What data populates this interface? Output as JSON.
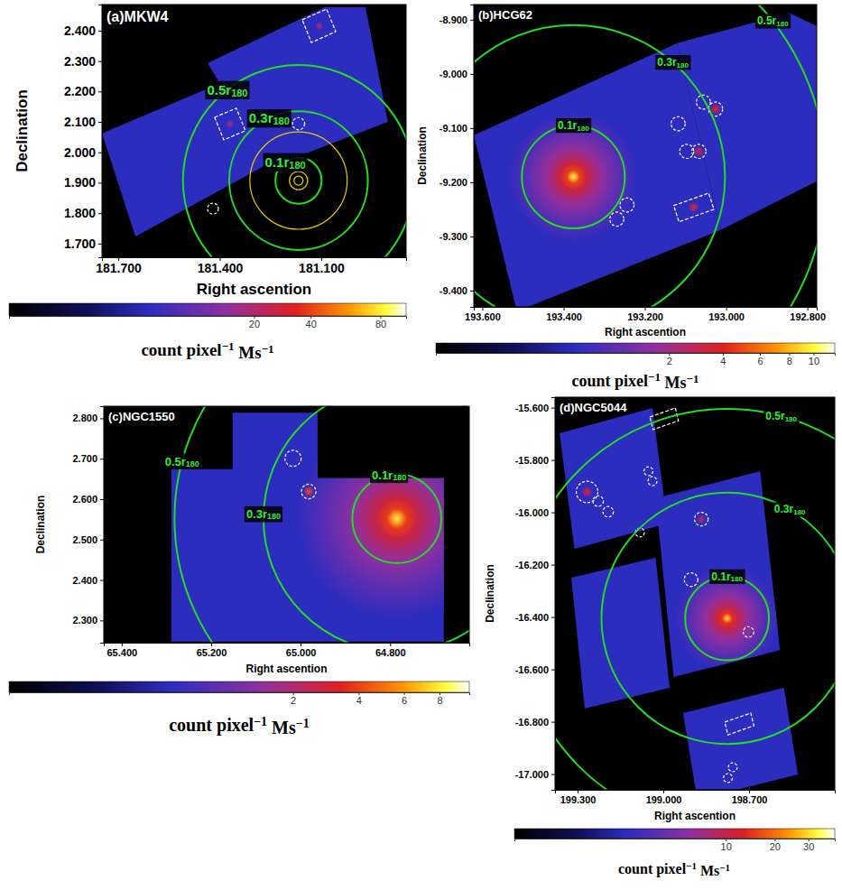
{
  "chart_data": [
    {
      "type": "image",
      "title": "(a)MKW4",
      "x_label": "Right ascention",
      "y_label": "Declination",
      "xlim": [
        181.748,
        180.849
      ],
      "ylim": [
        1.655,
        2.486
      ],
      "xticks": [
        {
          "value": 181.7,
          "label": "181.700"
        },
        {
          "value": 181.4,
          "label": "181.400"
        },
        {
          "value": 181.1,
          "label": "181.100"
        }
      ],
      "yticks": [
        {
          "value": 2.4,
          "label": "2.400"
        },
        {
          "value": 2.3,
          "label": "2.300"
        },
        {
          "value": 2.2,
          "label": "2.200"
        },
        {
          "value": 2.1,
          "label": "2.100"
        },
        {
          "value": 2.0,
          "label": "2.000"
        },
        {
          "value": 1.9,
          "label": "1.900"
        },
        {
          "value": 1.8,
          "label": "1.800"
        },
        {
          "value": 1.7,
          "label": "1.700"
        }
      ],
      "background": 3.0,
      "footprints": [
        [
          [
            181.748,
            2.062
          ],
          [
            181.351,
            2.249
          ],
          [
            181.249,
            1.967
          ],
          [
            181.649,
            1.723
          ]
        ],
        [
          [
            181.436,
            2.293
          ],
          [
            181.089,
            2.477
          ],
          [
            180.969,
            2.477
          ],
          [
            180.903,
            2.1
          ],
          [
            181.249,
            1.952
          ]
        ]
      ],
      "sources": [
        {
          "center": [
            181.37,
            2.093
          ],
          "radius": 0.015,
          "value": 20
        },
        {
          "center": [
            181.106,
            2.416
          ],
          "radius": 0.015,
          "value": 20
        }
      ],
      "contours": {
        "center": [
          181.167,
          1.907
        ],
        "radii": [
          0.015,
          0.03,
          0.16
        ]
      },
      "r180_center": [
        181.167,
        1.907
      ],
      "r180_circles": [
        {
          "label": "0.1r",
          "subscript": "180",
          "radius": 0.076
        },
        {
          "label": "0.3r",
          "subscript": "180",
          "radius": 0.228
        },
        {
          "label": "0.5r",
          "subscript": "180",
          "radius": 0.38
        }
      ],
      "excluded_circles": [
        {
          "center": [
            181.167,
            2.094
          ],
          "radius": 0.02
        },
        {
          "center": [
            181.42,
            1.815
          ],
          "radius": 0.018
        }
      ],
      "excluded_boxes": [
        [
          [
            181.415,
            2.115
          ],
          [
            181.351,
            2.145
          ],
          [
            181.324,
            2.071
          ],
          [
            181.388,
            2.041
          ]
        ],
        [
          [
            181.156,
            2.436
          ],
          [
            181.084,
            2.471
          ],
          [
            181.057,
            2.397
          ],
          [
            181.129,
            2.361
          ]
        ]
      ],
      "colorbar": {
        "range": [
          0,
          100
        ],
        "ticks": [
          20,
          40,
          80
        ],
        "label": [
          {
            "text": "count pixel",
            "sup": "−1"
          },
          {
            "text": " Ms",
            "sup": "−1"
          }
        ]
      }
    },
    {
      "type": "image",
      "title": "(b)HCG62",
      "x_label": "Right ascention",
      "y_label": "Declination",
      "xlim": [
        193.621,
        192.777
      ],
      "ylim": [
        -9.43,
        -8.872
      ],
      "xticks": [
        {
          "value": 193.6,
          "label": "193.600"
        },
        {
          "value": 193.4,
          "label": "193.400"
        },
        {
          "value": 193.2,
          "label": "193.200"
        },
        {
          "value": 193.0,
          "label": "193.000"
        },
        {
          "value": 192.8,
          "label": "192.800"
        }
      ],
      "yticks": [
        {
          "value": -8.9,
          "label": "-8.900"
        },
        {
          "value": -9.0,
          "label": "-9.000"
        },
        {
          "value": -9.1,
          "label": "-9.100"
        },
        {
          "value": -9.2,
          "label": "-9.200"
        },
        {
          "value": -9.3,
          "label": "-9.300"
        },
        {
          "value": -9.4,
          "label": "-9.400"
        }
      ],
      "background": 0.36,
      "footprints": [
        [
          [
            193.621,
            -9.113
          ],
          [
            193.12,
            -8.943
          ],
          [
            193.013,
            -9.288
          ],
          [
            193.515,
            -9.438
          ]
        ],
        [
          [
            193.12,
            -8.943
          ],
          [
            192.843,
            -8.888
          ],
          [
            192.774,
            -8.913
          ],
          [
            192.774,
            -9.197
          ],
          [
            193.013,
            -9.288
          ]
        ]
      ],
      "emission": {
        "center": [
          193.376,
          -9.19
        ],
        "radius": 0.12,
        "peak": 10
      },
      "sources": [
        {
          "center": [
            193.026,
            -9.065
          ],
          "radius": 0.012,
          "value": 4
        },
        {
          "center": [
            193.067,
            -9.143
          ],
          "radius": 0.012,
          "value": 3
        },
        {
          "center": [
            193.08,
            -9.246
          ],
          "radius": 0.012,
          "value": 3
        }
      ],
      "r180_center": [
        193.376,
        -9.19
      ],
      "r180_circles": [
        {
          "label": "0.1r",
          "subscript": "180",
          "radius": 0.095
        },
        {
          "label": "0.3r",
          "subscript": "180",
          "radius": 0.28
        },
        {
          "label": "0.5r",
          "subscript": "180",
          "radius": 0.467
        }
      ],
      "excluded_circles": [
        {
          "center": [
            193.056,
            -9.052
          ],
          "radius": 0.013
        },
        {
          "center": [
            193.026,
            -9.065
          ],
          "radius": 0.013
        },
        {
          "center": [
            193.118,
            -9.092
          ],
          "radius": 0.013
        },
        {
          "center": [
            193.097,
            -9.143
          ],
          "radius": 0.013
        },
        {
          "center": [
            193.067,
            -9.143
          ],
          "radius": 0.013
        },
        {
          "center": [
            193.244,
            -9.242
          ],
          "radius": 0.013
        },
        {
          "center": [
            193.269,
            -9.268
          ],
          "radius": 0.013
        }
      ],
      "excluded_boxes": [
        [
          [
            193.129,
            -9.243
          ],
          [
            193.043,
            -9.22
          ],
          [
            193.03,
            -9.25
          ],
          [
            193.116,
            -9.273
          ]
        ]
      ],
      "colorbar": {
        "range": [
          0,
          12
        ],
        "ticks": [
          2,
          4,
          6,
          8,
          10
        ],
        "label": [
          {
            "text": "count pixel",
            "sup": "−1"
          },
          {
            "text": " Ms",
            "sup": "−1"
          }
        ]
      }
    },
    {
      "type": "image",
      "title": "(c)NGC1550",
      "x_label": "Right ascention",
      "y_label": "Declination",
      "xlim": [
        65.44,
        64.623
      ],
      "ylim": [
        2.245,
        2.83
      ],
      "xticks": [
        {
          "value": 65.4,
          "label": "65.400"
        },
        {
          "value": 65.2,
          "label": "65.200"
        },
        {
          "value": 65.0,
          "label": "65.000"
        },
        {
          "value": 64.8,
          "label": "64.800"
        }
      ],
      "yticks": [
        {
          "value": 2.8,
          "label": "2.800"
        },
        {
          "value": 2.7,
          "label": "2.700"
        },
        {
          "value": 2.6,
          "label": "2.600"
        },
        {
          "value": 2.5,
          "label": "2.500"
        },
        {
          "value": 2.4,
          "label": "2.400"
        },
        {
          "value": 2.3,
          "label": "2.300"
        }
      ],
      "background": 0.3,
      "footprints": [
        [
          [
            65.289,
            2.674
          ],
          [
            65.152,
            2.674
          ],
          [
            65.152,
            2.814
          ],
          [
            64.962,
            2.814
          ],
          [
            64.962,
            2.652
          ],
          [
            64.68,
            2.652
          ],
          [
            64.68,
            2.248
          ],
          [
            65.289,
            2.248
          ]
        ]
      ],
      "emission": {
        "center": [
          64.785,
          2.552
        ],
        "radius": 0.25,
        "peak": 8
      },
      "sources": [
        {
          "center": [
            64.982,
            2.619
          ],
          "radius": 0.015,
          "value": 4
        }
      ],
      "r180_center": [
        64.785,
        2.552
      ],
      "r180_circles": [
        {
          "label": "0.1r",
          "subscript": "180",
          "radius": 0.11
        },
        {
          "label": "0.3r",
          "subscript": "180",
          "radius": 0.33
        },
        {
          "label": "0.5r",
          "subscript": "180",
          "radius": 0.55
        }
      ],
      "excluded_circles": [
        {
          "center": [
            65.017,
            2.701
          ],
          "radius": 0.02
        },
        {
          "center": [
            64.982,
            2.619
          ],
          "radius": 0.018
        }
      ],
      "colorbar": {
        "range": [
          0,
          10
        ],
        "ticks": [
          2,
          4,
          6,
          8
        ],
        "label": [
          {
            "text": "count pixel",
            "sup": "−1"
          },
          {
            "text": " Ms",
            "sup": "−1"
          }
        ]
      }
    },
    {
      "type": "image",
      "title": "(d)NGC5044",
      "x_label": "Right ascention",
      "y_label": "Declination",
      "xlim": [
        199.379,
        198.4
      ],
      "ylim": [
        -17.06,
        -15.56
      ],
      "xticks": [
        {
          "value": 199.3,
          "label": "199.300"
        },
        {
          "value": 199.0,
          "label": "199.000"
        },
        {
          "value": 198.7,
          "label": "198.700"
        }
      ],
      "yticks": [
        {
          "value": -15.6,
          "label": "-15.600"
        },
        {
          "value": -15.8,
          "label": "-15.800"
        },
        {
          "value": -16.0,
          "label": "-16.000"
        },
        {
          "value": -16.2,
          "label": "-16.200"
        },
        {
          "value": -16.4,
          "label": "-16.400"
        },
        {
          "value": -16.6,
          "label": "-16.600"
        },
        {
          "value": -16.8,
          "label": "-16.800"
        },
        {
          "value": -17.0,
          "label": "-17.000"
        }
      ],
      "background": 1.2,
      "footprints": [
        [
          [
            199.363,
            -15.698
          ],
          [
            199.038,
            -15.601
          ],
          [
            198.986,
            -16.043
          ],
          [
            199.311,
            -16.139
          ]
        ],
        [
          [
            199.027,
            -15.946
          ],
          [
            198.661,
            -15.843
          ],
          [
            198.592,
            -16.526
          ],
          [
            198.964,
            -16.629
          ]
        ],
        [
          [
            199.322,
            -16.25
          ],
          [
            199.027,
            -16.174
          ],
          [
            198.978,
            -16.67
          ],
          [
            199.275,
            -16.75
          ]
        ],
        [
          [
            198.931,
            -16.767
          ],
          [
            198.578,
            -16.67
          ],
          [
            198.529,
            -17.001
          ],
          [
            198.881,
            -17.098
          ]
        ]
      ],
      "emission": {
        "center": [
          198.777,
          -16.405
        ],
        "radius": 0.2,
        "peak": 30
      },
      "sources": [
        {
          "center": [
            199.267,
            -15.922
          ],
          "radius": 0.025,
          "value": 12
        },
        {
          "center": [
            198.867,
            -16.026
          ],
          "radius": 0.02,
          "value": 10
        },
        {
          "center": [
            198.702,
            -16.457
          ],
          "radius": 0.015,
          "value": 6
        }
      ],
      "r180_center": [
        198.777,
        -16.405
      ],
      "r180_circles": [
        {
          "label": "0.1r",
          "subscript": "180",
          "radius": 0.16
        },
        {
          "label": "0.3r",
          "subscript": "180",
          "radius": 0.48
        },
        {
          "label": "0.5r",
          "subscript": "180",
          "radius": 0.8
        }
      ],
      "excluded_circles": [
        {
          "center": [
            199.267,
            -15.922
          ],
          "radius": 0.041
        },
        {
          "center": [
            199.228,
            -15.957
          ],
          "radius": 0.02
        },
        {
          "center": [
            199.193,
            -15.998
          ],
          "radius": 0.02
        },
        {
          "center": [
            199.052,
            -15.843
          ],
          "radius": 0.017
        },
        {
          "center": [
            199.038,
            -15.881
          ],
          "radius": 0.017
        },
        {
          "center": [
            199.082,
            -16.077
          ],
          "radius": 0.017
        },
        {
          "center": [
            198.867,
            -16.026
          ],
          "radius": 0.026
        },
        {
          "center": [
            198.903,
            -16.257
          ],
          "radius": 0.026
        },
        {
          "center": [
            198.702,
            -16.457
          ],
          "radius": 0.02
        },
        {
          "center": [
            198.757,
            -16.974
          ],
          "radius": 0.017
        },
        {
          "center": [
            198.774,
            -17.015
          ],
          "radius": 0.017
        }
      ],
      "excluded_boxes": [
        [
          [
            199.047,
            -15.636
          ],
          [
            198.958,
            -15.601
          ],
          [
            198.947,
            -15.65
          ],
          [
            199.036,
            -15.684
          ]
        ],
        [
          [
            198.785,
            -16.801
          ],
          [
            198.694,
            -16.767
          ],
          [
            198.683,
            -16.815
          ],
          [
            198.774,
            -16.85
          ]
        ]
      ],
      "colorbar": {
        "range": [
          0,
          40
        ],
        "ticks": [
          10,
          20,
          30
        ],
        "label": [
          {
            "text": "count pixel",
            "sup": "−1"
          },
          {
            "text": " Ms",
            "sup": "−1"
          }
        ]
      }
    }
  ]
}
